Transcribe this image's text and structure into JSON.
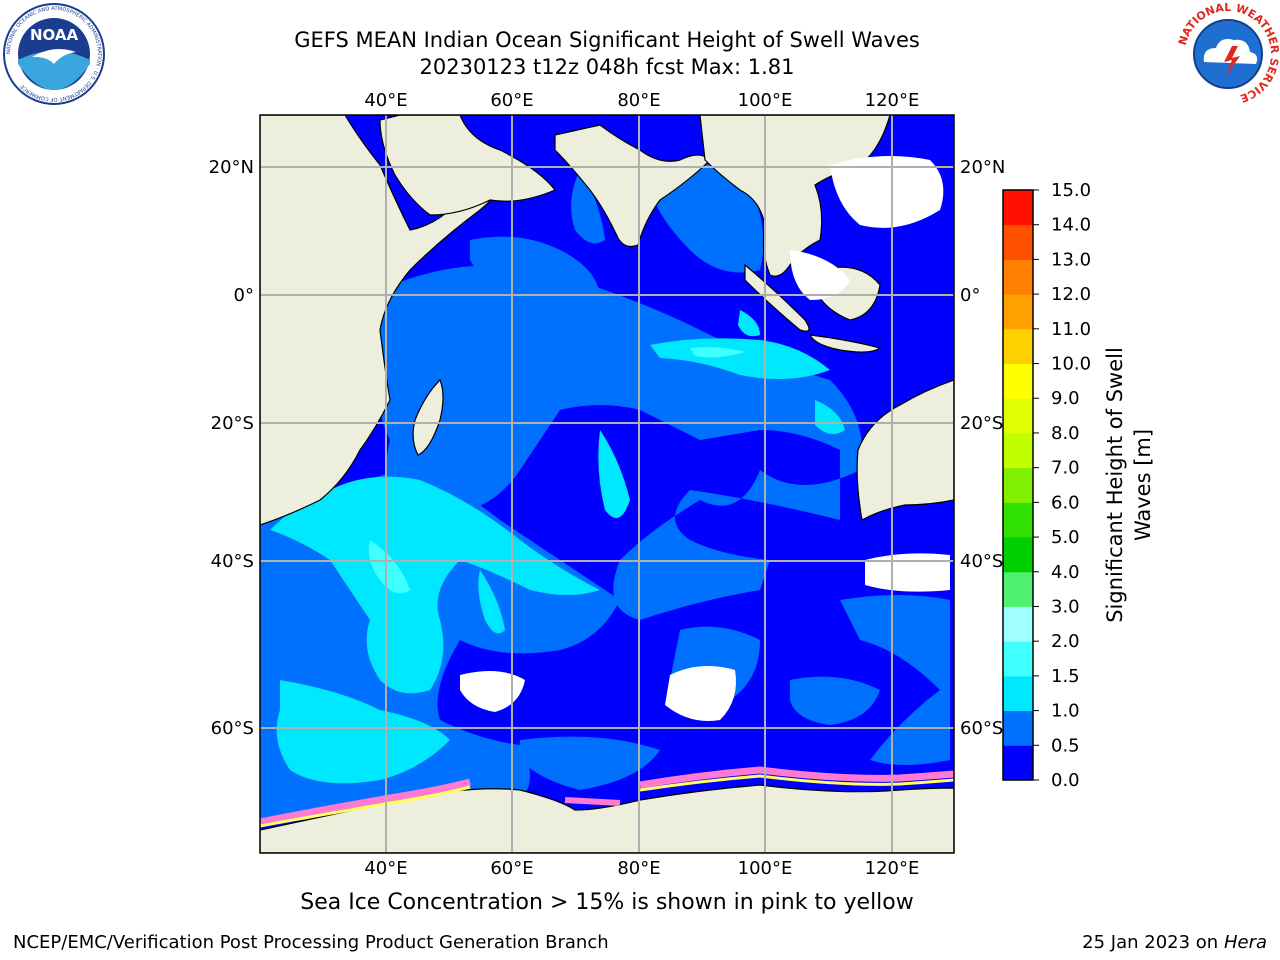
{
  "title": {
    "line1": "GEFS MEAN Indian Ocean Significant Height of Swell Waves",
    "line2": "20230123 t12z 048h fcst   Max: 1.81"
  },
  "map": {
    "lon_labels": [
      "40°E",
      "60°E",
      "80°E",
      "100°E",
      "120°E"
    ],
    "lat_labels": [
      "20°N",
      "0°",
      "20°S",
      "40°S",
      "60°S"
    ],
    "colors": {
      "land": "#eeeedd",
      "grid": "#b0b0b0",
      "no_data": "#ffffff"
    }
  },
  "colorbar": {
    "label_line1": "Significant Height of Swell",
    "label_line2": "Waves [m]",
    "ticks": [
      "0.0",
      "0.5",
      "1.0",
      "1.5",
      "2.0",
      "3.0",
      "4.0",
      "5.0",
      "6.0",
      "7.0",
      "8.0",
      "9.0",
      "10.0",
      "11.0",
      "12.0",
      "13.0",
      "14.0",
      "15.0"
    ],
    "colors": [
      "#0000ff",
      "#0070ff",
      "#00e8ff",
      "#40ffff",
      "#a0ffff",
      "#50f070",
      "#00d000",
      "#30e000",
      "#80f000",
      "#c0ff00",
      "#e0ff00",
      "#ffff00",
      "#ffd000",
      "#ffa000",
      "#ff8000",
      "#ff5000",
      "#ff1000"
    ]
  },
  "ice_note": "Sea Ice Concentration > 15% is shown in pink to yellow",
  "footer": {
    "left": "NCEP/EMC/Verification Post Processing Product Generation Branch",
    "right_prefix": "25 Jan 2023 on ",
    "right_italic": "Hera"
  },
  "logos": {
    "noaa": "NOAA",
    "noaa_ring": "NATIONAL OCEANIC AND ATMOSPHERIC ADMINISTRATION · U.S. DEPARTMENT OF COMMERCE",
    "nws_ring": "NATIONAL WEATHER SERVICE"
  }
}
